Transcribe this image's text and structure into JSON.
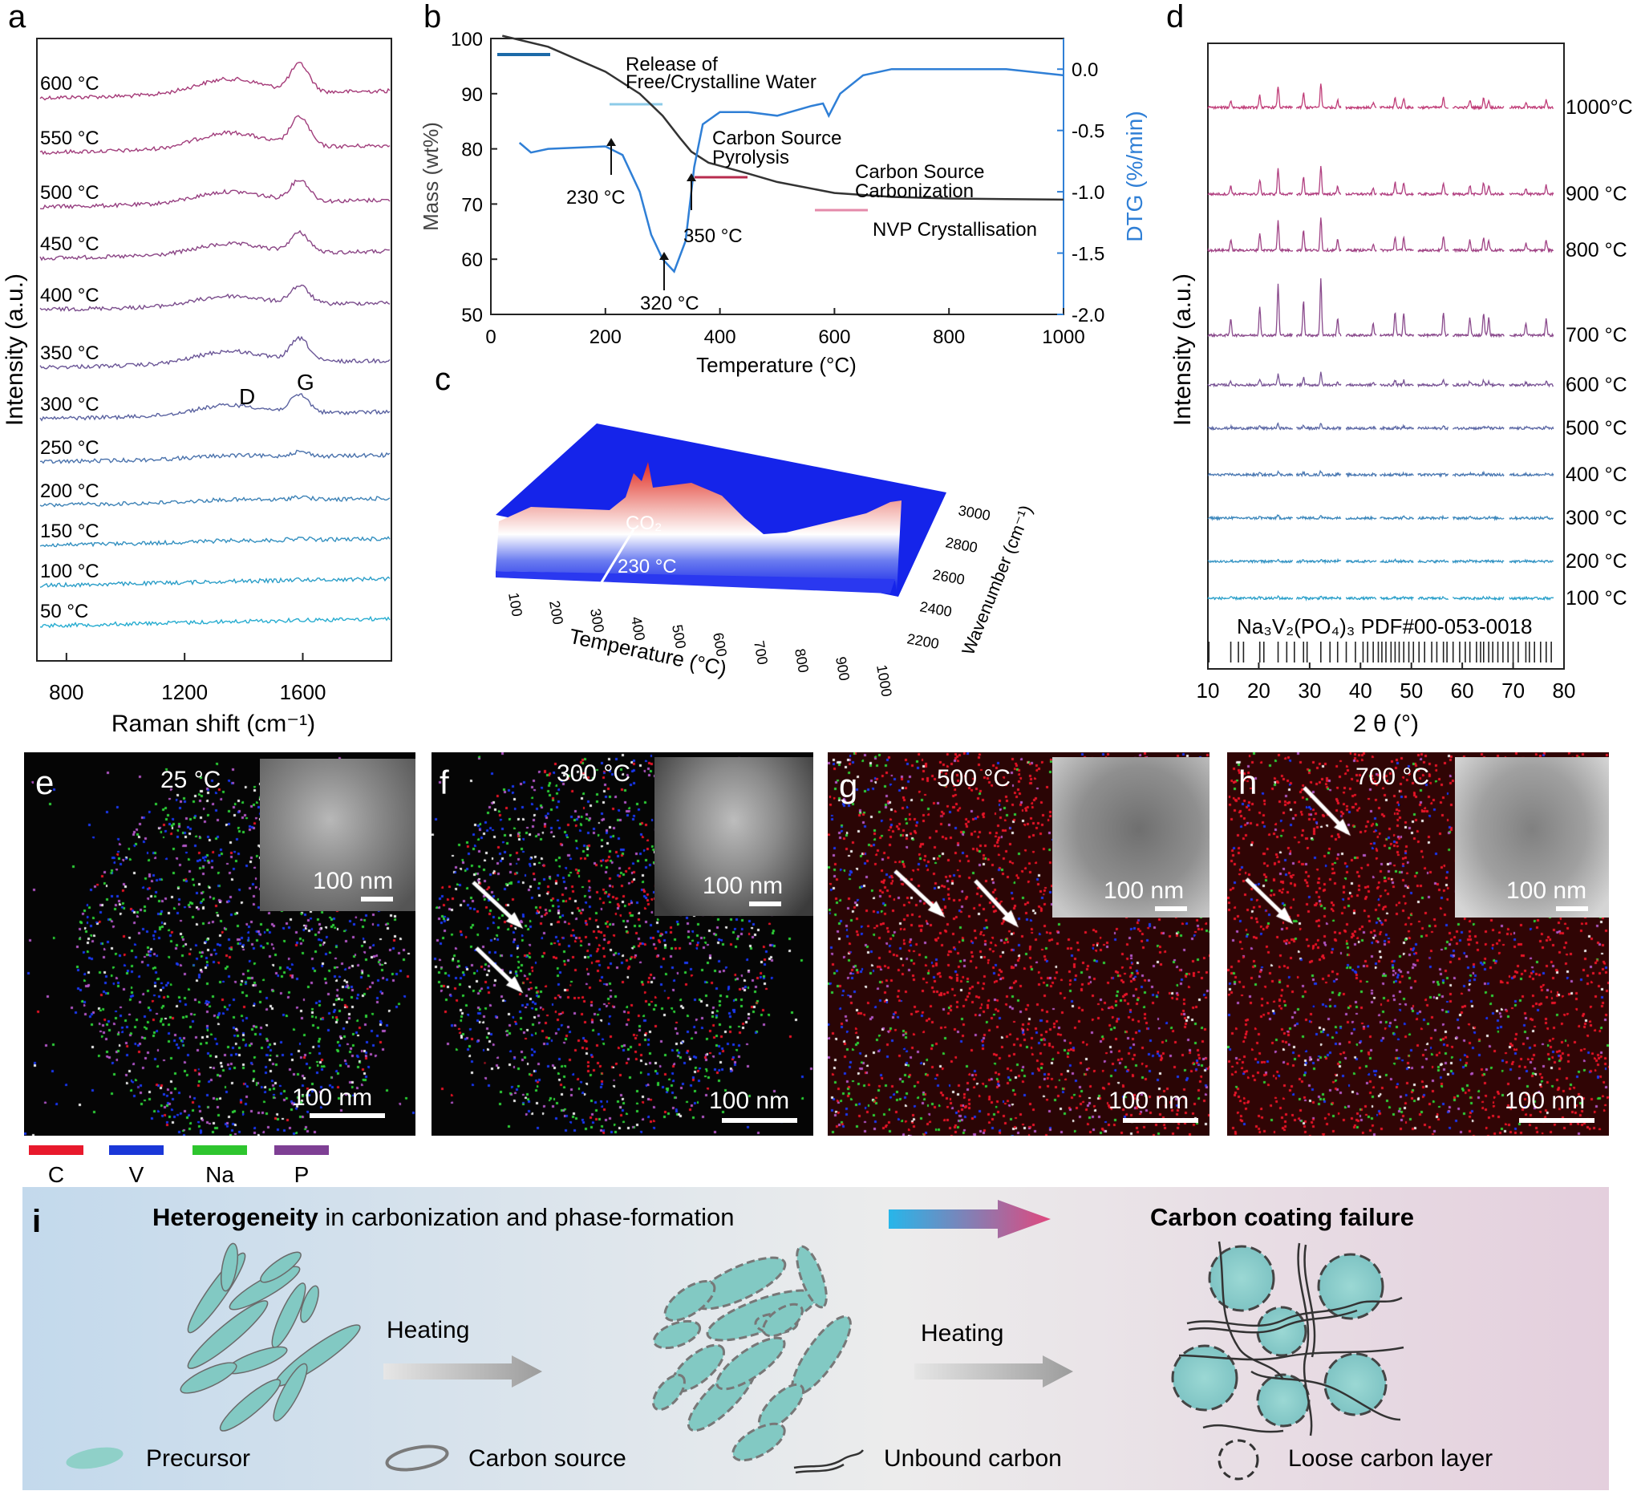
{
  "panel_a": {
    "label": "a",
    "xlabel": "Raman shift (cm⁻¹)",
    "ylabel": "Intensity (a.u.)",
    "x_ticks": [
      "800",
      "1200",
      "1600"
    ],
    "temps": [
      "600 °C",
      "550 °C",
      "500 °C",
      "450 °C",
      "400 °C",
      "350 °C",
      "300 °C",
      "250 °C",
      "200 °C",
      "150 °C",
      "100 °C",
      "50 °C"
    ],
    "peak_D": "D",
    "peak_G": "G",
    "colors": [
      "#a53a78",
      "#a13e7c",
      "#963f80",
      "#8a4585",
      "#7a4c8c",
      "#6a5596",
      "#5a62a0",
      "#4a72ac",
      "#3d82b6",
      "#3390c0",
      "#2b9ec8",
      "#26acd0"
    ]
  },
  "panel_b": {
    "label": "b",
    "xlabel": "Temperature (°C)",
    "ylabel_left": "Mass (wt%)",
    "ylabel_right": "DTG (%/min)",
    "x_ticks": [
      "0",
      "200",
      "400",
      "600",
      "800",
      "1000"
    ],
    "y_left_ticks": [
      "100",
      "90",
      "80",
      "70",
      "60",
      "50"
    ],
    "y_right_ticks": [
      "0.0",
      "-0.5",
      "-1.0",
      "-1.5",
      "-2.0"
    ],
    "ann_water_1": "Release of",
    "ann_water_2": "Free/Crystalline Water",
    "ann_pyro_1": "Carbon Source",
    "ann_pyro_2": "Pyrolysis",
    "ann_carb_1": "Carbon Source",
    "ann_carb_2": "Carbonization",
    "ann_nvp": "NVP Crystallisation",
    "t230": "230 °C",
    "t350": "350 °C",
    "t320": "320 °C",
    "mass_color": "#333333",
    "dtg_color": "#2f7fd6"
  },
  "chart_data": [
    {
      "type": "line",
      "title": "",
      "xlabel": "Temperature (°C)",
      "ylabel": "Mass (wt%)",
      "xlim": [
        0,
        1000
      ],
      "ylim": [
        50,
        100
      ],
      "series": [
        {
          "name": "Mass (wt%)",
          "x": [
            20,
            100,
            200,
            260,
            300,
            330,
            350,
            380,
            450,
            500,
            600,
            700,
            800,
            900,
            1000
          ],
          "y": [
            100.5,
            98.5,
            94,
            90,
            86,
            82,
            79.5,
            77.5,
            75.5,
            74,
            72,
            71.3,
            71,
            70.9,
            70.8
          ]
        },
        {
          "name": "DTG (%/min)",
          "x": [
            50,
            70,
            100,
            200,
            230,
            260,
            280,
            300,
            320,
            340,
            355,
            370,
            400,
            450,
            500,
            560,
            580,
            590,
            610,
            650,
            700,
            800,
            900,
            1000
          ],
          "y": [
            -0.6,
            -0.68,
            -0.65,
            -0.63,
            -0.7,
            -1.0,
            -1.35,
            -1.55,
            -1.65,
            -1.4,
            -0.8,
            -0.45,
            -0.35,
            -0.35,
            -0.38,
            -0.3,
            -0.28,
            -0.38,
            -0.2,
            -0.05,
            0.0,
            0.0,
            0.0,
            -0.05
          ]
        }
      ],
      "y2lim": [
        -2.0,
        0.25
      ]
    },
    {
      "type": "line",
      "title": "",
      "xlabel": "2 θ (°)",
      "ylabel": "Intensity (a.u.)",
      "xlim": [
        10,
        80
      ],
      "x_ticks": [
        10,
        20,
        30,
        40,
        50,
        60,
        70,
        80
      ],
      "series": [
        {
          "name": "1000°C"
        },
        {
          "name": "900 °C"
        },
        {
          "name": "800 °C"
        },
        {
          "name": "700 °C"
        },
        {
          "name": "600 °C"
        },
        {
          "name": "500 °C"
        },
        {
          "name": "400 °C"
        },
        {
          "name": "300 °C"
        },
        {
          "name": "200 °C"
        },
        {
          "name": "100 °C"
        }
      ],
      "reference": "Na₃V₂(PO₄)₃ PDF#00-053-0018"
    }
  ],
  "panel_c": {
    "label": "c",
    "co2": "CO₂",
    "t230": "230 °C",
    "xlabel": "Temperature (°C)",
    "ylabel": "Wavenumber (cm⁻¹)",
    "x_ticks": [
      "100",
      "200",
      "300",
      "400",
      "500",
      "600",
      "700",
      "800",
      "900",
      "1000"
    ],
    "y_ticks": [
      "2200",
      "2400",
      "2600",
      "2800",
      "3000"
    ]
  },
  "panel_d": {
    "label": "d",
    "ylabel": "Intensity (a.u.)",
    "xlabel": "2 θ (°)",
    "x_ticks": [
      "10",
      "20",
      "30",
      "40",
      "50",
      "60",
      "70",
      "80"
    ],
    "temps": [
      "1000°C",
      "900 °C",
      "800 °C",
      "700 °C",
      "600 °C",
      "500 °C",
      "400 °C",
      "300 °C",
      "200 °C",
      "100 °C"
    ],
    "reference": "Na₃V₂(PO₄)₃ PDF#00-053-0018",
    "colors": [
      "#c03d78",
      "#b13f80",
      "#a04385",
      "#8a4a8c",
      "#7a5596",
      "#5e6aa6",
      "#4a78b2",
      "#3d88bc",
      "#3494c4",
      "#2ba0ca"
    ]
  },
  "em": [
    {
      "label": "e",
      "temp": "25 °C",
      "scale": "100 nm",
      "inset_scale": "100 nm"
    },
    {
      "label": "f",
      "temp": "300 °C",
      "scale": "100 nm",
      "inset_scale": "100 nm"
    },
    {
      "label": "g",
      "temp": "500 °C",
      "scale": "100 nm",
      "inset_scale": "100 nm"
    },
    {
      "label": "h",
      "temp": "700 °C",
      "scale": "100 nm",
      "inset_scale": "100 nm"
    }
  ],
  "legend": [
    {
      "name": "C",
      "color": "#e8192c"
    },
    {
      "name": "V",
      "color": "#1a37d8"
    },
    {
      "name": "Na",
      "color": "#2ec52e"
    },
    {
      "name": "P",
      "color": "#7e3f94"
    }
  ],
  "panel_i": {
    "label": "i",
    "title_bold": "Heterogeneity",
    "title_rest": " in carbonization and phase-formation",
    "right_title": "Carbon coating failure",
    "heating": "Heating",
    "legend_precursor": "Precursor",
    "legend_carbon_source": "Carbon source",
    "legend_unbound": "Unbound carbon",
    "legend_loose": "Loose carbon layer"
  }
}
